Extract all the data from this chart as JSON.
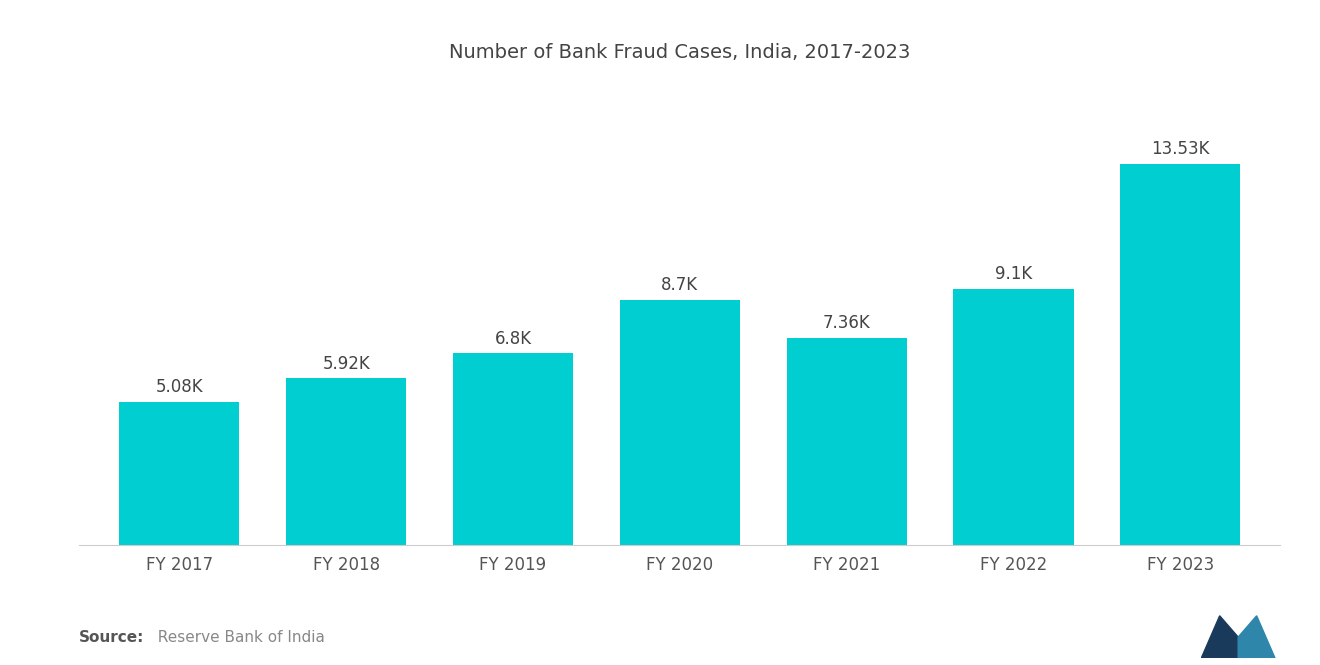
{
  "title": "Number of Bank Fraud Cases, India, 2017-2023",
  "categories": [
    "FY 2017",
    "FY 2018",
    "FY 2019",
    "FY 2020",
    "FY 2021",
    "FY 2022",
    "FY 2023"
  ],
  "values": [
    5.08,
    5.92,
    6.8,
    8.7,
    7.36,
    9.1,
    13.53
  ],
  "labels": [
    "5.08K",
    "5.92K",
    "6.8K",
    "8.7K",
    "7.36K",
    "9.1K",
    "13.53K"
  ],
  "bar_color": "#00CED1",
  "background_color": "#ffffff",
  "title_fontsize": 14,
  "label_fontsize": 12,
  "tick_fontsize": 12,
  "source_bold": "Source:",
  "source_text": "  Reserve Bank of India",
  "source_fontsize": 11,
  "ylim": [
    0,
    16.5
  ],
  "bar_width": 0.72
}
